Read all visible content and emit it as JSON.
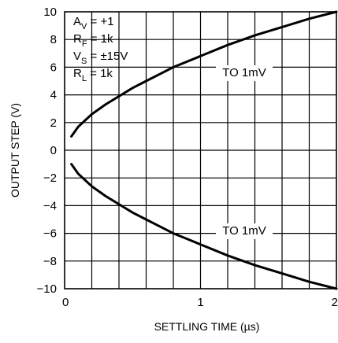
{
  "chart_data": {
    "type": "line",
    "title": "",
    "xlabel": "SETTLING TIME (µs)",
    "ylabel": "OUTPUT STEP (V)",
    "xlim": [
      0,
      2
    ],
    "ylim": [
      -10,
      10
    ],
    "x_ticks": [
      0,
      1,
      2
    ],
    "x_tick_labels": [
      "0",
      "1",
      "2"
    ],
    "y_ticks": [
      -10,
      -8,
      -6,
      -4,
      -2,
      0,
      2,
      4,
      6,
      8,
      10
    ],
    "y_tick_labels": [
      "−10",
      "−8",
      "−6",
      "−4",
      "−2",
      "0",
      "2",
      "4",
      "6",
      "8",
      "10"
    ],
    "grid": true,
    "grid_x_step": 0.2,
    "grid_y_step": 2,
    "conditions": [
      {
        "sym": "A",
        "sub": "V",
        "rest": " = +1"
      },
      {
        "sym": "R",
        "sub": "F",
        "rest": " = 1k"
      },
      {
        "sym": "V",
        "sub": "S",
        "rest": " = ±15V"
      },
      {
        "sym": "R",
        "sub": "L",
        "rest": " = 1k"
      }
    ],
    "series": [
      {
        "label": "TO 1mV",
        "x": [
          0.05,
          0.1,
          0.2,
          0.3,
          0.4,
          0.5,
          0.6,
          0.7,
          0.8,
          0.9,
          1.0,
          1.2,
          1.4,
          1.6,
          1.8,
          2.0
        ],
        "y": [
          1.0,
          1.7,
          2.6,
          3.3,
          3.9,
          4.5,
          5.0,
          5.5,
          6.0,
          6.4,
          6.8,
          7.6,
          8.3,
          8.9,
          9.5,
          10.0
        ]
      },
      {
        "label": "TO 1mV",
        "x": [
          0.05,
          0.1,
          0.2,
          0.3,
          0.4,
          0.5,
          0.6,
          0.7,
          0.8,
          0.9,
          1.0,
          1.2,
          1.4,
          1.6,
          1.8,
          2.0
        ],
        "y": [
          -1.0,
          -1.7,
          -2.6,
          -3.3,
          -3.9,
          -4.5,
          -5.0,
          -5.5,
          -6.0,
          -6.4,
          -6.8,
          -7.6,
          -8.3,
          -8.9,
          -9.5,
          -10.0
        ]
      }
    ]
  }
}
